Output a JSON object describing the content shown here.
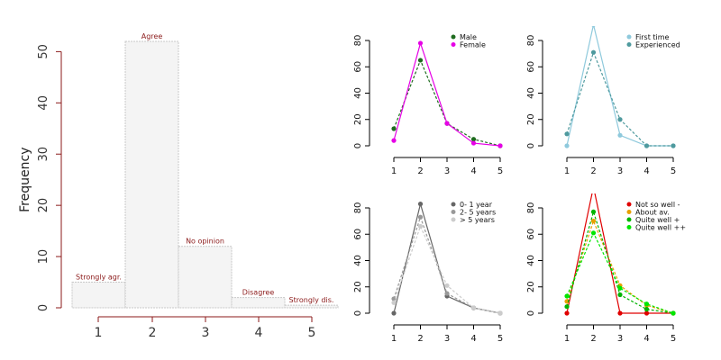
{
  "chart_data": [
    {
      "type": "bar",
      "ylabel": "Frequency",
      "categories": [
        "1",
        "2",
        "3",
        "4",
        "5"
      ],
      "bar_labels": [
        "Strongly agr.",
        "Agree",
        "No opinion",
        "Disagree",
        "Strongly dis."
      ],
      "values": [
        5,
        52,
        12,
        2,
        0.5
      ],
      "ylim": [
        0,
        52
      ],
      "yticks": [
        0,
        10,
        20,
        30,
        40,
        50
      ],
      "grid": false,
      "colors": {
        "bar_fill": "#f4f4f4",
        "bar_stroke": "#c8c8c8",
        "label": "#8b1a1a",
        "axis": "#8b1a1a"
      }
    },
    {
      "type": "line",
      "x": [
        1,
        2,
        3,
        4,
        5
      ],
      "ylim": [
        0,
        80
      ],
      "yticks": [
        0,
        20,
        40,
        60,
        80
      ],
      "legend_position": "top-right",
      "series": [
        {
          "name": "Male",
          "values": [
            13,
            65,
            17,
            5,
            0
          ],
          "color": "#1e6b1e",
          "dashed": true
        },
        {
          "name": "Female",
          "values": [
            4,
            78,
            17,
            2,
            0
          ],
          "color": "#e600e6",
          "dashed": false
        }
      ]
    },
    {
      "type": "line",
      "x": [
        1,
        2,
        3,
        4,
        5
      ],
      "ylim": [
        0,
        80
      ],
      "yticks": [
        0,
        20,
        40,
        60,
        80
      ],
      "legend_position": "top-right",
      "series": [
        {
          "name": "First time",
          "values": [
            0,
            92,
            8,
            0,
            0
          ],
          "color": "#8ec9dc",
          "dashed": false
        },
        {
          "name": "Experienced",
          "values": [
            9,
            71,
            20,
            0,
            0
          ],
          "color": "#4f9a9e",
          "dashed": true
        }
      ]
    },
    {
      "type": "line",
      "x": [
        1,
        2,
        3,
        4,
        5
      ],
      "ylim": [
        0,
        80
      ],
      "yticks": [
        0,
        20,
        40,
        60,
        80
      ],
      "legend_position": "top-right",
      "series": [
        {
          "name": "0- 1 year",
          "values": [
            0,
            83,
            13,
            4,
            0
          ],
          "color": "#666666",
          "dashed": false
        },
        {
          "name": "2- 5 years",
          "values": [
            11,
            73,
            15,
            4,
            0
          ],
          "color": "#999999",
          "dashed": true
        },
        {
          "name": "> 5 years",
          "values": [
            8,
            66,
            21,
            4,
            0
          ],
          "color": "#cccccc",
          "dashed": true
        }
      ]
    },
    {
      "type": "line",
      "x": [
        1,
        2,
        3,
        4,
        5
      ],
      "ylim": [
        0,
        80
      ],
      "yticks": [
        0,
        20,
        40,
        60,
        80
      ],
      "legend_position": "top-right",
      "series": [
        {
          "name": "Not so well -",
          "values": [
            0,
            96,
            0,
            0,
            0
          ],
          "color": "#e00000",
          "dashed": false
        },
        {
          "name": "About av.",
          "values": [
            9,
            70,
            21,
            6,
            0
          ],
          "color": "#e8a000",
          "dashed": true
        },
        {
          "name": "Quite well +",
          "values": [
            5,
            77,
            14,
            3,
            0
          ],
          "color": "#00b400",
          "dashed": true
        },
        {
          "name": "Quite well ++",
          "values": [
            13,
            61,
            19,
            7,
            0
          ],
          "color": "#00e600",
          "dashed": true
        }
      ]
    }
  ]
}
